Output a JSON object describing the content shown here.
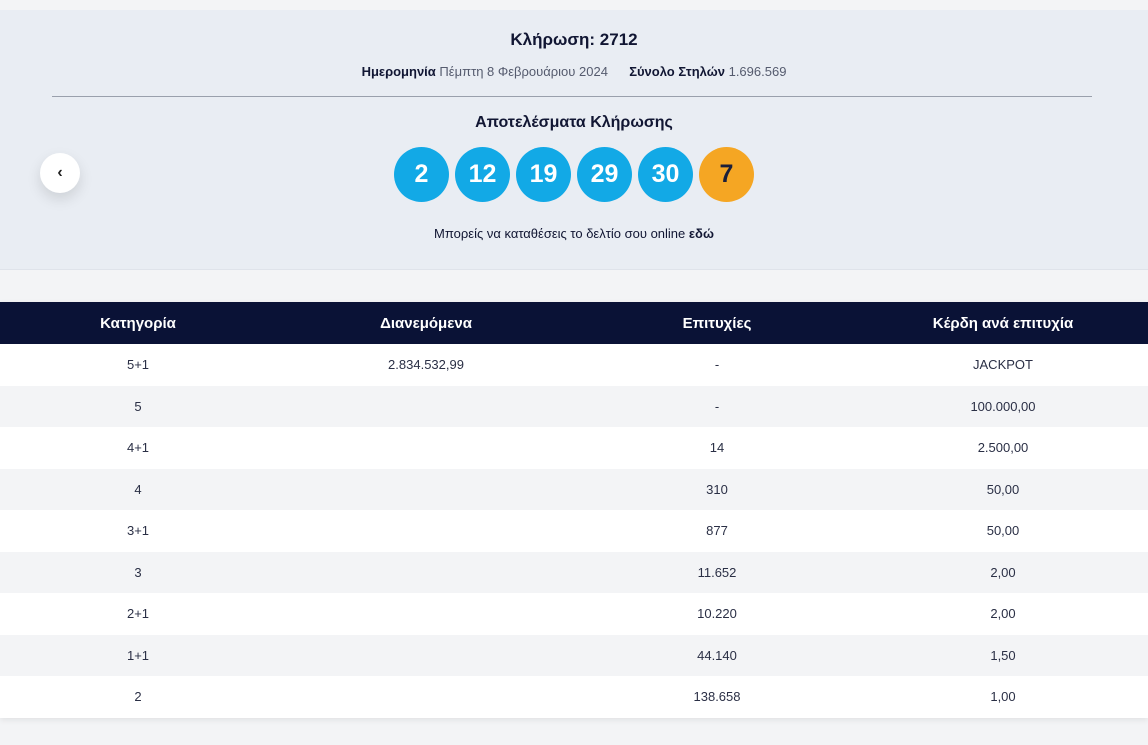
{
  "draw": {
    "title": "Κλήρωση: 2712",
    "date_label": "Ημερομηνία",
    "date_value": "Πέμπτη 8 Φεβρουάριου 2024",
    "columns_label": "Σύνολο Στηλών",
    "columns_value": "1.696.569"
  },
  "results": {
    "title": "Αποτελέσματα Κλήρωσης",
    "numbers": [
      "2",
      "12",
      "19",
      "29",
      "30"
    ],
    "bonus": "7",
    "online_text": "Μπορείς να καταθέσεις το δελτίο σου online ",
    "online_link": "εδώ"
  },
  "nav": {
    "prev_icon": "‹"
  },
  "colors": {
    "ball": "#12a9e6",
    "bonus": "#f5a623",
    "header": "#0a1236"
  },
  "table": {
    "headers": [
      "Κατηγορία",
      "Διανεμόμενα",
      "Επιτυχίες",
      "Κέρδη ανά επιτυχία"
    ],
    "rows": [
      [
        "5+1",
        "2.834.532,99",
        "-",
        "JACKPOT"
      ],
      [
        "5",
        "",
        "-",
        "100.000,00"
      ],
      [
        "4+1",
        "",
        "14",
        "2.500,00"
      ],
      [
        "4",
        "",
        "310",
        "50,00"
      ],
      [
        "3+1",
        "",
        "877",
        "50,00"
      ],
      [
        "3",
        "",
        "11.652",
        "2,00"
      ],
      [
        "2+1",
        "",
        "10.220",
        "2,00"
      ],
      [
        "1+1",
        "",
        "44.140",
        "1,50"
      ],
      [
        "2",
        "",
        "138.658",
        "1,00"
      ]
    ]
  }
}
